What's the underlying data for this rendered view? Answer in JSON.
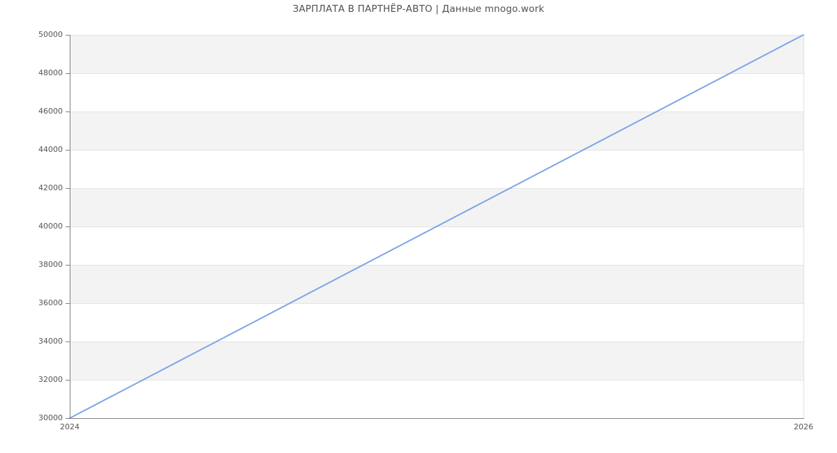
{
  "page": {
    "background": "#ffffff"
  },
  "chart_data": {
    "type": "line",
    "title": "ЗАРПЛАТА В ПАРТНЁР-АВТО | Данные mnogo.work",
    "xlabel": "",
    "ylabel": "",
    "x": [
      2024,
      2026
    ],
    "series": [
      {
        "values": [
          30000,
          50000
        ]
      }
    ],
    "xlim": [
      2024,
      2026
    ],
    "ylim": [
      30000,
      50000
    ],
    "xticks": [
      2024,
      2026
    ],
    "yticks": [
      30000,
      32000,
      34000,
      36000,
      38000,
      40000,
      42000,
      44000,
      46000,
      48000,
      50000
    ],
    "grid": "horizontal gridlines with alternating band fill, gray band at top",
    "legend": "none",
    "colors": {
      "line": "#7da4e8",
      "band": "#f3f3f3",
      "grid": "#e4e4e4",
      "right_border": "#e0e0e0",
      "axis": "#808080",
      "tick_label": "#555555",
      "title": "#4f4f4f",
      "background": "#ffffff"
    }
  }
}
